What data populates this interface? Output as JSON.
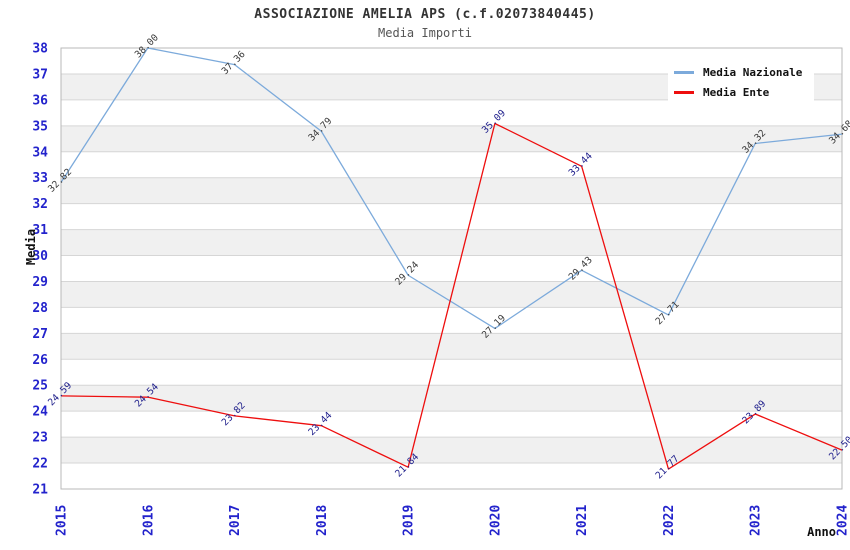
{
  "chart_data": {
    "type": "line",
    "title": "ASSOCIAZIONE AMELIA APS (c.f.02073840445)",
    "subtitle": "Media Importi",
    "xlabel": "Anno",
    "ylabel": "Media",
    "x": [
      "2015",
      "2016",
      "2017",
      "2018",
      "2019",
      "2020",
      "2021",
      "2022",
      "2023",
      "2024"
    ],
    "series": [
      {
        "name": "Media Nazionale",
        "color": "#7caadb",
        "label_color": "#3a3a3a",
        "values": [
          32.82,
          38.0,
          37.36,
          34.79,
          29.24,
          27.19,
          29.43,
          27.71,
          34.32,
          34.68
        ]
      },
      {
        "name": "Media Ente",
        "color": "#ee0e0e",
        "label_color": "#20208c",
        "values": [
          24.59,
          24.54,
          23.82,
          23.44,
          21.84,
          35.09,
          33.44,
          21.77,
          23.89,
          22.5
        ]
      }
    ],
    "ylim": [
      21,
      38
    ],
    "ytick_step": 1,
    "grid": true,
    "legend_position": "top-right",
    "band_colors": [
      "#ffffff",
      "#f0f0f0"
    ],
    "grid_color": "#d6d6d6",
    "frame_color": "#b9b9b9",
    "tick_label_color": "#2323cc",
    "axis_label_color": "#111111"
  }
}
